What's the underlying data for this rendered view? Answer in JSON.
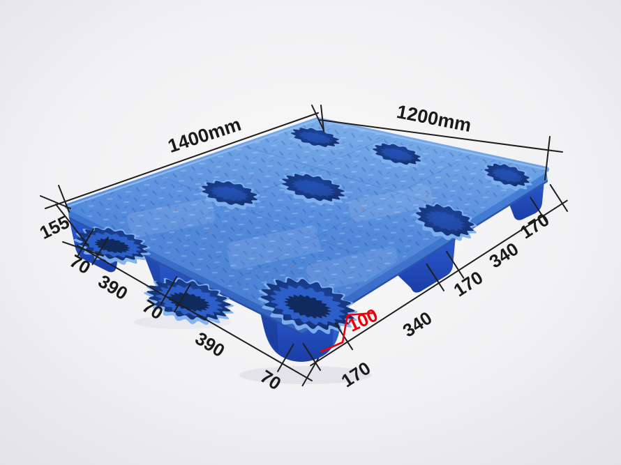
{
  "dimensions": {
    "length_label": "1400mm",
    "width_label": "1200mm",
    "height_label": "155",
    "foot_height_label": "100",
    "left_edge_segments": [
      "70",
      "390",
      "70",
      "390",
      "70"
    ],
    "right_edge_segments": [
      "170",
      "340",
      "170",
      "340",
      "170"
    ]
  },
  "colors": {
    "deck_top_light": "#7aade9",
    "deck_top_mid": "#5289db",
    "deck_top_dark": "#4a80d2",
    "side_wall": "#3b71cd",
    "foot_top": "#2c5fd4",
    "foot_bottom": "#1b3da6",
    "hole_rim": "#7fb0ee",
    "hole_wall": "#2d5fc9",
    "hole_dark": "#16336f",
    "hole_floor": "#112a5e",
    "dimension_line": "#1e1e1e",
    "annotation_red": "#e8000c",
    "background_center": "#fafafb",
    "background_edge": "#e4e4e7"
  }
}
